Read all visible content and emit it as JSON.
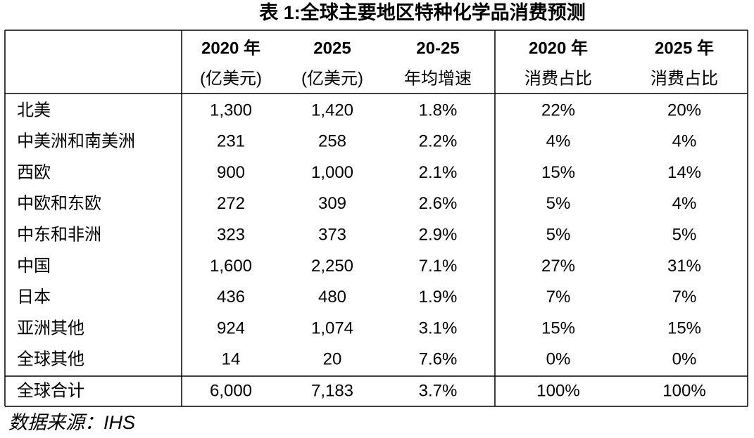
{
  "title": "表 1:全球主要地区特种化学品消费预测",
  "table": {
    "header": [
      [
        "2020 年",
        "(亿美元)"
      ],
      [
        "2025",
        "(亿美元)"
      ],
      [
        "20-25",
        "年均增速"
      ],
      [
        "2020 年",
        "消费占比"
      ],
      [
        "2025 年",
        "消费占比"
      ]
    ],
    "rows": [
      [
        "北美",
        "1,300",
        "1,420",
        "1.8%",
        "22%",
        "20%"
      ],
      [
        "中美洲和南美洲",
        "231",
        "258",
        "2.2%",
        "4%",
        "4%"
      ],
      [
        "西欧",
        "900",
        "1,000",
        "2.1%",
        "15%",
        "14%"
      ],
      [
        "中欧和东欧",
        "272",
        "309",
        "2.6%",
        "5%",
        "4%"
      ],
      [
        "中东和非洲",
        "323",
        "373",
        "2.9%",
        "5%",
        "5%"
      ],
      [
        "中国",
        "1,600",
        "2,250",
        "7.1%",
        "27%",
        "31%"
      ],
      [
        "日本",
        "436",
        "480",
        "1.9%",
        "7%",
        "7%"
      ],
      [
        "亚洲其他",
        "924",
        "1,074",
        "3.1%",
        "15%",
        "15%"
      ],
      [
        "全球其他",
        "14",
        "20",
        "7.6%",
        "0%",
        "0%"
      ]
    ],
    "total": [
      "全球合计",
      "6,000",
      "7,183",
      "3.7%",
      "100%",
      "100%"
    ]
  },
  "source": "数据来源：IHS"
}
